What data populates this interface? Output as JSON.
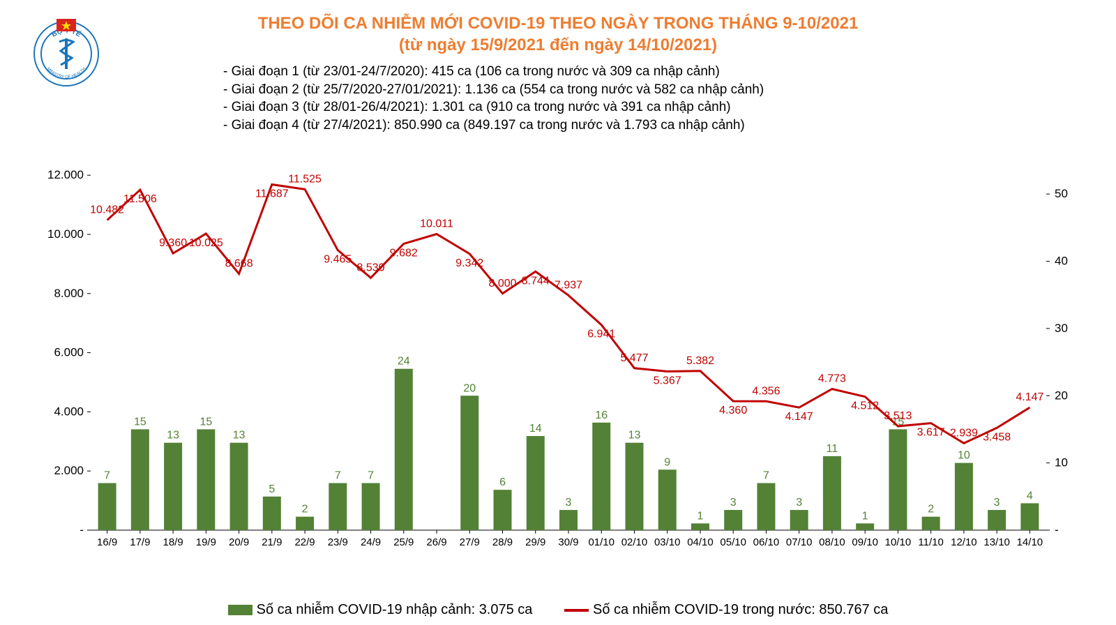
{
  "logo": {
    "outer_text_top": "BỘ Y TẾ",
    "outer_text_bottom": "MINISTRY OF HEALTH",
    "circle_color": "#1b75bc",
    "text_color": "#1b75bc",
    "flag_color": "#da251d",
    "star_color": "#ffdd00"
  },
  "title": {
    "line1": "THEO DÕI CA NHIỄM MỚI COVID-19 THEO NGÀY TRONG THÁNG 9-10/2021",
    "line2": "(từ ngày 15/9/2021 đến ngày 14/10/2021)",
    "color": "#ed7d31",
    "fontsize": 24
  },
  "phases": [
    "- Giai đoạn 1 (từ 23/01-24/7/2020): 415 ca (106 ca trong nước và 309 ca nhập cảnh)",
    "- Giai đoạn 2 (từ 25/7/2020-27/01/2021): 1.136 ca (554 ca trong nước và 582 ca nhập cảnh)",
    "- Giai đoạn 3 (từ 28/01-26/4/2021): 1.301 ca (910 ca trong nước và 391 ca nhập cảnh)",
    "- Giai đoạn 4 (từ 27/4/2021): 850.990 ca (849.197 ca trong nước và 1.793 ca nhập cảnh)"
  ],
  "chart": {
    "type": "combo-bar-line",
    "background_color": "#ffffff",
    "categories": [
      "16/9",
      "17/9",
      "18/9",
      "19/9",
      "20/9",
      "21/9",
      "22/9",
      "23/9",
      "24/9",
      "25/9",
      "26/9",
      "27/9",
      "28/9",
      "29/9",
      "30/9",
      "01/10",
      "02/10",
      "03/10",
      "04/10",
      "05/10",
      "06/10",
      "07/10",
      "08/10",
      "09/10",
      "10/10",
      "11/10",
      "12/10",
      "13/10",
      "14/10"
    ],
    "bar_series": {
      "name": "Số ca nhiễm COVID-19 nhập cảnh",
      "total_label": "3.075 ca",
      "color": "#538135",
      "label_color": "#538135",
      "values": [
        7,
        15,
        13,
        15,
        13,
        5,
        2,
        7,
        7,
        24,
        null,
        20,
        6,
        14,
        3,
        16,
        13,
        9,
        1,
        3,
        7,
        3,
        11,
        1,
        15,
        2,
        10,
        3,
        4
      ],
      "ylim": [
        0,
        55
      ],
      "ytick_labels": [
        "-",
        "10",
        "20",
        "30",
        "40",
        "50"
      ],
      "ytick_values": [
        0,
        10,
        20,
        30,
        40,
        50
      ]
    },
    "line_series": {
      "name": "Số ca nhiễm COVID-19 trong nước",
      "total_label": "850.767 ca",
      "color": "#c00000",
      "label_color": "#c00000",
      "line_width": 3,
      "values": [
        10482,
        11506,
        9360,
        10025,
        8668,
        11687,
        11525,
        9465,
        8530,
        9682,
        10011,
        9342,
        8000,
        8744,
        7937,
        6941,
        5477,
        5367,
        5382,
        4360,
        4356,
        4147,
        4773,
        4512,
        3513,
        3617,
        2939,
        3458,
        4147
      ],
      "data_labels": [
        "10.482",
        "11.506",
        "9.360",
        "10.025",
        "8.668",
        "11.687",
        "11.525",
        "9.465",
        "8.530",
        "9.682",
        "10.011",
        "9.342",
        "8.000",
        "8.744",
        "7.937",
        "6.941",
        "5.477",
        "5.367",
        "5.382",
        "4.360",
        "4.356",
        "4.147",
        "4.773",
        "4.512",
        "3.513",
        "3.617",
        "2.939",
        "3.458",
        "4.147"
      ],
      "ylim": [
        0,
        12500
      ],
      "ytick_labels": [
        "-",
        "2.000",
        "4.000",
        "6.000",
        "8.000",
        "10.000",
        "12.000"
      ],
      "ytick_values": [
        0,
        2000,
        4000,
        6000,
        8000,
        10000,
        12000
      ]
    },
    "x_label_fontsize": 15,
    "data_label_fontsize": 16
  },
  "legend": {
    "bar_text": "Số ca nhiễm COVID-19 nhập cảnh: 3.075 ca",
    "line_text": "Số ca nhiễm COVID-19 trong nước: 850.767 ca"
  }
}
